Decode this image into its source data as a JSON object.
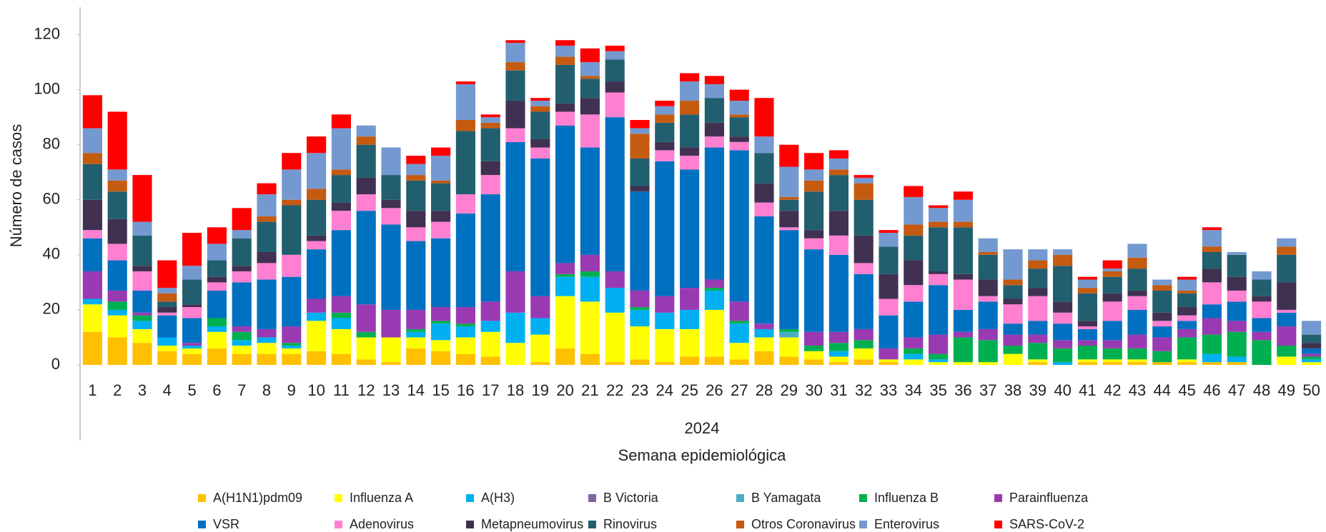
{
  "chart_data": {
    "type": "stacked_bar",
    "y_label": "Número de casos",
    "x_label": "Semana epidemiológica",
    "x_group_label": "2024",
    "categories": [
      "1",
      "2",
      "3",
      "4",
      "5",
      "6",
      "7",
      "8",
      "9",
      "10",
      "11",
      "12",
      "13",
      "14",
      "15",
      "16",
      "17",
      "18",
      "19",
      "20",
      "21",
      "22",
      "23",
      "24",
      "25",
      "26",
      "27",
      "28",
      "29",
      "30",
      "31",
      "32",
      "33",
      "34",
      "35",
      "36",
      "37",
      "38",
      "39",
      "40",
      "41",
      "42",
      "43",
      "44",
      "45",
      "46",
      "47",
      "48",
      "49",
      "50"
    ],
    "ylim": [
      0,
      130
    ],
    "yticks": [
      0,
      20,
      40,
      60,
      80,
      100,
      120
    ],
    "grid": false,
    "series": [
      {
        "name": "A(H1N1)pdm09",
        "color": "#FFC000",
        "values": [
          12,
          10,
          8,
          5,
          4,
          6,
          4,
          4,
          4,
          5,
          4,
          2,
          1,
          6,
          5,
          4,
          3,
          0,
          1,
          6,
          4,
          1,
          2,
          1,
          3,
          3,
          2,
          5,
          3,
          2,
          1,
          2,
          1,
          0,
          0,
          0,
          0,
          0,
          1,
          0,
          1,
          1,
          1,
          1,
          1,
          1,
          1,
          0,
          0,
          0
        ]
      },
      {
        "name": "Influenza A",
        "color": "#FFFF00",
        "values": [
          10,
          8,
          5,
          2,
          2,
          6,
          3,
          4,
          2,
          11,
          9,
          8,
          9,
          4,
          4,
          6,
          9,
          8,
          10,
          19,
          19,
          18,
          12,
          12,
          10,
          17,
          6,
          5,
          7,
          3,
          2,
          4,
          1,
          2,
          1,
          1,
          1,
          4,
          1,
          0,
          1,
          1,
          1,
          0,
          1,
          0,
          0,
          0,
          3,
          1
        ]
      },
      {
        "name": "A(H3)",
        "color": "#00B0F0",
        "values": [
          2,
          2,
          3,
          3,
          1,
          2,
          2,
          2,
          1,
          3,
          4,
          0,
          0,
          2,
          6,
          4,
          4,
          11,
          6,
          7,
          9,
          9,
          6,
          6,
          7,
          7,
          7,
          3,
          0,
          0,
          2,
          0,
          0,
          2,
          1,
          0,
          0,
          0,
          0,
          1,
          0,
          0,
          0,
          0,
          0,
          3,
          2,
          0,
          0,
          1
        ]
      },
      {
        "name": "B Victoria",
        "color": "#8064A2",
        "values": [
          0,
          0,
          0,
          0,
          0,
          0,
          0,
          0,
          0,
          0,
          0,
          0,
          0,
          0,
          0,
          0,
          0,
          0,
          0,
          0,
          0,
          0,
          0,
          0,
          0,
          0,
          0,
          0,
          0,
          0,
          0,
          0,
          0,
          0,
          0,
          0,
          0,
          0,
          0,
          0,
          0,
          0,
          0,
          0,
          0,
          0,
          0,
          0,
          0,
          0
        ]
      },
      {
        "name": "B Yamagata",
        "color": "#4BACC6",
        "values": [
          0,
          0,
          0,
          0,
          0,
          0,
          0,
          0,
          0,
          0,
          0,
          0,
          0,
          0,
          0,
          0,
          0,
          0,
          0,
          0,
          0,
          0,
          0,
          0,
          0,
          0,
          0,
          0,
          2,
          0,
          0,
          0,
          0,
          0,
          0,
          0,
          0,
          0,
          0,
          0,
          0,
          0,
          0,
          0,
          0,
          0,
          0,
          0,
          0,
          0
        ]
      },
      {
        "name": "Influenza B",
        "color": "#00B050",
        "values": [
          0,
          3,
          2,
          0,
          0,
          3,
          3,
          0,
          1,
          0,
          2,
          2,
          0,
          1,
          1,
          1,
          0,
          0,
          0,
          1,
          2,
          0,
          1,
          0,
          0,
          1,
          1,
          0,
          1,
          2,
          3,
          3,
          0,
          2,
          2,
          9,
          8,
          3,
          6,
          5,
          5,
          4,
          4,
          4,
          8,
          7,
          9,
          9,
          4,
          1
        ]
      },
      {
        "name": "Parainfluenza",
        "color": "#9A3AB2",
        "values": [
          10,
          4,
          1,
          0,
          1,
          0,
          2,
          3,
          6,
          5,
          6,
          10,
          10,
          7,
          5,
          6,
          7,
          15,
          8,
          4,
          6,
          6,
          6,
          6,
          8,
          3,
          7,
          2,
          0,
          5,
          4,
          4,
          4,
          4,
          7,
          2,
          4,
          4,
          3,
          3,
          2,
          3,
          5,
          5,
          3,
          6,
          4,
          3,
          7,
          1
        ]
      },
      {
        "name": "VSR",
        "color": "#0070C0",
        "values": [
          12,
          11,
          8,
          8,
          9,
          10,
          16,
          18,
          18,
          18,
          24,
          34,
          31,
          25,
          25,
          34,
          39,
          47,
          50,
          50,
          39,
          56,
          36,
          49,
          43,
          48,
          55,
          39,
          36,
          30,
          28,
          20,
          12,
          13,
          18,
          8,
          10,
          4,
          5,
          6,
          4,
          7,
          9,
          4,
          3,
          5,
          7,
          5,
          5,
          2
        ]
      },
      {
        "name": "Adenovirus",
        "color": "#FF7FD1",
        "values": [
          3,
          6,
          7,
          1,
          4,
          3,
          4,
          6,
          8,
          3,
          7,
          6,
          6,
          5,
          6,
          7,
          7,
          5,
          4,
          5,
          12,
          9,
          0,
          4,
          5,
          4,
          3,
          5,
          1,
          4,
          7,
          4,
          6,
          6,
          4,
          11,
          2,
          7,
          9,
          4,
          1,
          7,
          5,
          2,
          2,
          8,
          4,
          6,
          1,
          0
        ]
      },
      {
        "name": "Metapneumovirus",
        "color": "#403151",
        "values": [
          11,
          9,
          2,
          2,
          1,
          2,
          2,
          4,
          0,
          2,
          3,
          6,
          3,
          6,
          4,
          0,
          5,
          10,
          3,
          3,
          6,
          4,
          2,
          3,
          3,
          5,
          2,
          7,
          6,
          3,
          9,
          10,
          9,
          9,
          1,
          2,
          6,
          2,
          3,
          4,
          2,
          3,
          2,
          3,
          3,
          5,
          5,
          2,
          10,
          2
        ]
      },
      {
        "name": "Rinovirus",
        "color": "#215F6F",
        "values": [
          13,
          10,
          11,
          2,
          9,
          6,
          10,
          11,
          18,
          13,
          10,
          12,
          9,
          11,
          10,
          23,
          12,
          11,
          10,
          14,
          7,
          8,
          10,
          7,
          12,
          9,
          7,
          11,
          4,
          14,
          13,
          13,
          10,
          9,
          16,
          17,
          9,
          5,
          7,
          13,
          10,
          6,
          8,
          8,
          5,
          6,
          8,
          6,
          10,
          3
        ]
      },
      {
        "name": "Otros Coronavirus",
        "color": "#C55A11",
        "values": [
          4,
          4,
          0,
          3,
          0,
          0,
          0,
          2,
          2,
          4,
          2,
          3,
          0,
          2,
          1,
          4,
          2,
          3,
          2,
          3,
          1,
          0,
          9,
          3,
          5,
          0,
          1,
          0,
          1,
          4,
          2,
          6,
          0,
          4,
          2,
          2,
          1,
          2,
          3,
          4,
          2,
          2,
          4,
          2,
          1,
          2,
          0,
          0,
          3,
          0
        ]
      },
      {
        "name": "Enterovirus",
        "color": "#7499D0",
        "values": [
          9,
          4,
          5,
          2,
          5,
          6,
          3,
          8,
          11,
          13,
          15,
          4,
          10,
          4,
          9,
          13,
          2,
          7,
          2,
          4,
          5,
          3,
          2,
          3,
          7,
          5,
          5,
          6,
          11,
          4,
          4,
          2,
          5,
          10,
          5,
          8,
          5,
          11,
          4,
          2,
          3,
          1,
          5,
          2,
          4,
          6,
          1,
          3,
          3,
          5
        ]
      },
      {
        "name": "SARS-CoV-2",
        "color": "#FF0000",
        "values": [
          12,
          21,
          17,
          10,
          12,
          6,
          8,
          4,
          6,
          6,
          5,
          0,
          0,
          3,
          3,
          1,
          1,
          1,
          1,
          2,
          5,
          2,
          3,
          2,
          3,
          3,
          4,
          14,
          8,
          6,
          3,
          1,
          1,
          4,
          1,
          3,
          0,
          0,
          0,
          0,
          1,
          3,
          0,
          0,
          1,
          1,
          0,
          0,
          0,
          0
        ]
      }
    ]
  }
}
